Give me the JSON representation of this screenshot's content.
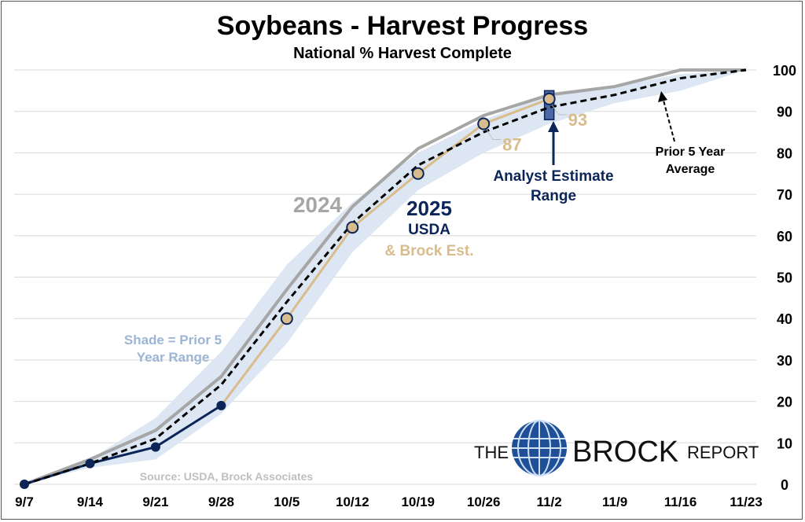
{
  "chart_data": {
    "type": "line",
    "title": "Soybeans - Harvest Progress",
    "subtitle": "National % Harvest Complete",
    "xlabel": "",
    "ylabel": "",
    "ylim": [
      0,
      100
    ],
    "yticks": [
      0,
      10,
      20,
      30,
      40,
      50,
      60,
      70,
      80,
      90,
      100
    ],
    "y_axis_side": "right",
    "grid": true,
    "categories": [
      "9/7",
      "9/14",
      "9/21",
      "9/28",
      "10/5",
      "10/12",
      "10/19",
      "10/26",
      "11/2",
      "11/9",
      "11/16",
      "11/23"
    ],
    "series": [
      {
        "name": "Prior 5 Year Range (low)",
        "values": [
          0,
          4,
          6,
          17,
          34,
          56,
          71,
          80,
          87,
          92,
          95,
          100
        ],
        "color": "#dce7f3"
      },
      {
        "name": "Prior 5 Year Range (high)",
        "values": [
          0,
          6,
          16,
          32,
          53,
          68,
          80,
          88,
          94,
          96,
          99,
          100
        ],
        "color": "#dce7f3"
      },
      {
        "name": "2024",
        "values": [
          0,
          6,
          13,
          26,
          47,
          67,
          81,
          89,
          94,
          96,
          100,
          100
        ],
        "color": "#a6a6a6"
      },
      {
        "name": "Prior 5 Year Average",
        "values": [
          0,
          5,
          11,
          24,
          44,
          63,
          77,
          85,
          91,
          94,
          98,
          100
        ],
        "color": "#000000"
      },
      {
        "name": "2025 USDA",
        "values": [
          0,
          5,
          9,
          19,
          null,
          null,
          null,
          null,
          null,
          null,
          null,
          null
        ],
        "color": "#0b2559"
      },
      {
        "name": "2025 Brock Est.",
        "values": [
          null,
          null,
          null,
          19,
          40,
          62,
          75,
          87,
          93,
          null,
          null,
          null
        ],
        "color": "#d9bc8c"
      }
    ],
    "analyst_estimate_range": {
      "x": "11/2",
      "low": 88,
      "high": 95
    },
    "data_labels": [
      {
        "x": "10/26",
        "value": "87"
      },
      {
        "x": "11/2",
        "value": "93"
      }
    ],
    "annotations": {
      "label_2024": "2024",
      "label_2025": "2025",
      "label_usda": "USDA",
      "label_brock": "& Brock Est.",
      "analyst_1": "Analyst Estimate",
      "analyst_2": "Range",
      "avg_1": "Prior 5 Year",
      "avg_2": "Average",
      "shade_1": "Shade = Prior 5",
      "shade_2": "Year Range",
      "source": "Source: USDA, Brock Associates"
    },
    "logo": {
      "the": "THE",
      "brock": "BROCK",
      "report": "REPORT"
    }
  }
}
